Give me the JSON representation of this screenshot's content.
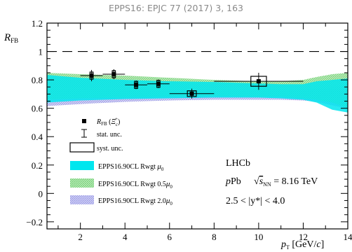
{
  "header": "EPPS16: EPJC 77 (2017) 3, 163",
  "chart_data": {
    "type": "scatter",
    "ylabel": "R_FB",
    "xlabel": "p_T [GeV/c]",
    "xlim": [
      0.5,
      14
    ],
    "ylim": [
      -0.25,
      1.2
    ],
    "xticks": [
      2,
      4,
      6,
      8,
      10,
      12,
      14
    ],
    "yticks": [
      -0.2,
      0,
      0.2,
      0.4,
      0.6,
      0.8,
      1,
      1.2
    ],
    "grid": false,
    "reference_line": 1.0,
    "points": [
      {
        "x": 2.5,
        "xlo": 2.0,
        "xhi": 3.0,
        "y": 0.83,
        "stat": 0.04,
        "syst": 0.025,
        "sysw": 0.14
      },
      {
        "x": 3.5,
        "xlo": 3.0,
        "xhi": 4.0,
        "y": 0.84,
        "stat": 0.035,
        "syst": 0.025,
        "sysw": 0.14
      },
      {
        "x": 4.5,
        "xlo": 4.0,
        "xhi": 5.0,
        "y": 0.765,
        "stat": 0.03,
        "syst": 0.025,
        "sysw": 0.14
      },
      {
        "x": 5.5,
        "xlo": 5.0,
        "xhi": 6.0,
        "y": 0.772,
        "stat": 0.03,
        "syst": 0.025,
        "sysw": 0.14
      },
      {
        "x": 7.0,
        "xlo": 6.0,
        "xhi": 8.0,
        "y": 0.703,
        "stat": 0.035,
        "syst": 0.02,
        "sysw": 0.4
      },
      {
        "x": 10.0,
        "xlo": 8.0,
        "xhi": 12.0,
        "y": 0.79,
        "stat": 0.06,
        "syst": 0.035,
        "sysw": 0.7
      }
    ],
    "bands": [
      {
        "name": "EPPS16.90CL Rwgt 2.0μ0",
        "color": "#b3b3ea",
        "x": [
          0.5,
          2,
          4,
          6,
          8,
          10,
          11,
          12,
          12.6,
          13.3,
          14
        ],
        "lo": [
          0.615,
          0.63,
          0.645,
          0.655,
          0.66,
          0.66,
          0.66,
          0.655,
          0.645,
          0.62,
          0.6
        ],
        "hi": [
          0.815,
          0.8,
          0.79,
          0.78,
          0.775,
          0.765,
          0.76,
          0.75,
          0.74,
          0.745,
          0.755
        ]
      },
      {
        "name": "EPPS16.90CL Rwgt 0.5μ0",
        "color": "#8cd98c",
        "x": [
          0.5,
          2,
          4,
          6,
          8,
          10,
          11,
          12,
          12.6,
          13.3,
          14
        ],
        "lo": [
          0.66,
          0.67,
          0.675,
          0.68,
          0.685,
          0.68,
          0.68,
          0.67,
          0.66,
          0.64,
          0.6
        ],
        "hi": [
          0.85,
          0.84,
          0.83,
          0.815,
          0.8,
          0.79,
          0.79,
          0.8,
          0.82,
          0.84,
          0.85
        ]
      },
      {
        "name": "EPPS16.90CL Rwgt μ0",
        "color": "#00e6ee",
        "x": [
          0.5,
          2,
          4,
          6,
          8,
          10,
          11,
          12,
          12.6,
          13.3,
          14
        ],
        "lo": [
          0.64,
          0.655,
          0.665,
          0.67,
          0.675,
          0.675,
          0.67,
          0.66,
          0.64,
          0.59,
          0.57
        ],
        "hi": [
          0.835,
          0.815,
          0.8,
          0.79,
          0.785,
          0.775,
          0.77,
          0.77,
          0.79,
          0.8,
          0.81
        ]
      }
    ],
    "legend": [
      {
        "key": "data",
        "label": "R_FB (Ξc+)"
      },
      {
        "key": "stat",
        "label": "stat. unc."
      },
      {
        "key": "syst",
        "label": "syst. unc."
      },
      {
        "key": "band0",
        "label": "EPPS16.90CL Rwgt",
        "scale": "μ0",
        "color": "#00e6ee",
        "hatch": false
      },
      {
        "key": "band1",
        "label": "EPPS16.90CL Rwgt",
        "scale": "0.5μ0",
        "color": "#8cd98c",
        "hatch": true
      },
      {
        "key": "band2",
        "label": "EPPS16.90CL Rwgt",
        "scale": "2.0μ0",
        "color": "#b3b3ea",
        "hatch": true
      }
    ],
    "annotations": {
      "experiment": "LHCb",
      "system": "pPb",
      "energy": "√sNN = 8.16 TeV",
      "rapidity": "2.5 < |y*| < 4.0"
    }
  }
}
